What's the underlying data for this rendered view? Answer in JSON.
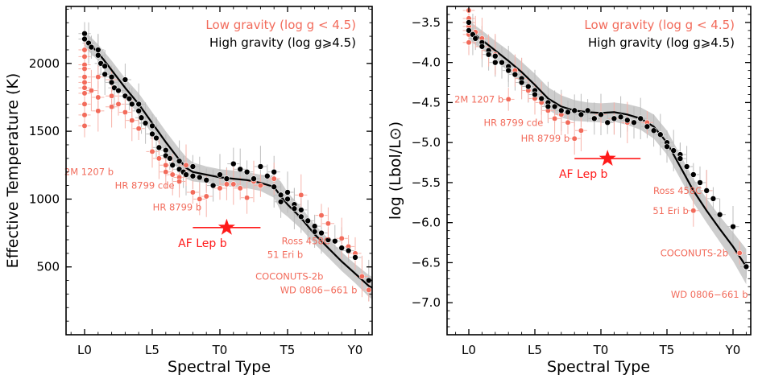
{
  "colors": {
    "low_gravity": "#f26b5b",
    "high_gravity": "#000000",
    "highlight": "#ff1a1a",
    "band": "#c8c8c8",
    "errorbar": "#bdbdbd"
  },
  "chart_data": [
    {
      "type": "scatter",
      "title": "",
      "xlabel": "Spectral Type",
      "ylabel": "Effective Temperature (K)",
      "xlim": [
        -2,
        22
      ],
      "ylim": [
        0,
        2420
      ],
      "xticks": [
        {
          "v": 0,
          "label": "L0"
        },
        {
          "v": 5,
          "label": "L5"
        },
        {
          "v": 10,
          "label": "T0"
        },
        {
          "v": 15,
          "label": "T5"
        },
        {
          "v": 20,
          "label": "Y0"
        }
      ],
      "yticks": [
        {
          "v": 500,
          "label": "500"
        },
        {
          "v": 1000,
          "label": "1000"
        },
        {
          "v": 1500,
          "label": "1500"
        },
        {
          "v": 2000,
          "label": "2000"
        }
      ],
      "legend": {
        "position": "top-right",
        "low_label": "Low gravity (log g < 4.5)",
        "high_label": "High gravity (log g⩾4.5)"
      },
      "trend": {
        "x": [
          0,
          1,
          2,
          3,
          4,
          5,
          6,
          7,
          7.5,
          8,
          9,
          10,
          11,
          12,
          13,
          14,
          14.5,
          15,
          16,
          17,
          18,
          19,
          20,
          21,
          22
        ],
        "y": [
          2180,
          2080,
          1950,
          1820,
          1700,
          1560,
          1420,
          1290,
          1230,
          1200,
          1180,
          1160,
          1150,
          1140,
          1120,
          1090,
          1020,
          960,
          860,
          740,
          640,
          540,
          450,
          360,
          300
        ],
        "band": [
          60,
          60,
          70,
          70,
          80,
          80,
          80,
          80,
          80,
          70,
          60,
          60,
          60,
          60,
          60,
          80,
          110,
          90,
          80,
          70,
          70,
          70,
          70,
          80,
          90
        ]
      },
      "high_gravity": {
        "x": [
          0,
          0,
          0.3,
          0.5,
          1,
          1,
          1.2,
          1.5,
          1.5,
          2,
          2,
          2.2,
          2.5,
          3,
          3,
          3.3,
          3.5,
          4,
          4,
          4.2,
          4.5,
          5,
          5,
          5.3,
          5.5,
          6,
          6,
          6.3,
          6.5,
          7,
          7,
          7.3,
          7.5,
          8,
          8,
          8.5,
          9,
          9.5,
          10,
          10.5,
          11,
          11.5,
          12,
          12.5,
          13,
          13.5,
          14,
          14,
          14.5,
          14.5,
          15,
          15,
          15.5,
          15.5,
          16,
          16,
          16.5,
          17,
          17,
          17.5,
          18,
          18.5,
          19,
          19.5,
          20,
          21
        ],
        "y": [
          2220,
          2180,
          2150,
          2120,
          2100,
          2060,
          2000,
          1980,
          1920,
          1900,
          1860,
          1820,
          1800,
          1880,
          1760,
          1740,
          1700,
          1700,
          1650,
          1600,
          1560,
          1540,
          1480,
          1450,
          1380,
          1360,
          1320,
          1300,
          1250,
          1280,
          1220,
          1200,
          1180,
          1240,
          1170,
          1160,
          1140,
          1100,
          1180,
          1150,
          1260,
          1220,
          1200,
          1150,
          1240,
          1170,
          1200,
          1090,
          1030,
          980,
          1050,
          1000,
          960,
          930,
          920,
          870,
          840,
          800,
          760,
          750,
          700,
          690,
          640,
          620,
          570,
          400
        ]
      },
      "low_gravity": {
        "x": [
          0,
          0,
          0,
          0,
          0,
          0,
          0,
          0,
          0,
          0,
          0,
          0.5,
          1,
          1,
          1,
          2,
          2,
          2,
          2.5,
          3,
          3.5,
          4,
          5,
          5.5,
          6,
          6,
          6.5,
          7,
          7,
          7.5,
          8,
          8.5,
          9,
          10,
          10.5,
          11,
          11.5,
          12,
          12.5,
          13,
          14,
          16,
          17.5,
          18,
          19,
          19.5,
          20,
          20.5,
          21
        ],
        "y": [
          2050,
          1990,
          1960,
          1900,
          1860,
          1820,
          1780,
          1700,
          1620,
          1540,
          2100,
          1800,
          1900,
          1750,
          1650,
          1880,
          1760,
          1680,
          1700,
          1640,
          1580,
          1520,
          1350,
          1300,
          1250,
          1200,
          1180,
          1160,
          1130,
          1250,
          1050,
          1000,
          1020,
          1080,
          1110,
          1110,
          1080,
          1010,
          1130,
          1100,
          1150,
          1030,
          880,
          820,
          710,
          650,
          600,
          430,
          330
        ]
      },
      "annotations": [
        {
          "text": "2M 1207 b",
          "x": 2.5,
          "y": 1200
        },
        {
          "text": "HR 8799 cde",
          "x": 7,
          "y": 1100
        },
        {
          "text": "HR 8799 b",
          "x": 9,
          "y": 940
        },
        {
          "text": "Ross 458C",
          "x": 18.5,
          "y": 690
        },
        {
          "text": "51 Eri b",
          "x": 16.5,
          "y": 590
        },
        {
          "text": "COCONUTS-2b",
          "x": 18,
          "y": 430
        },
        {
          "text": "WD 0806−661 b",
          "x": 20.5,
          "y": 330
        }
      ],
      "highlight": {
        "label": "AF Lep b",
        "x": 10.5,
        "y": 790,
        "xerr": 2.5
      }
    },
    {
      "type": "scatter",
      "title": "",
      "xlabel": "Spectral Type",
      "ylabel": "log (Lbol/L⊙)",
      "ylim": [
        -7.4,
        -3.3
      ],
      "xlim": [
        -2,
        22
      ],
      "xticks": [
        {
          "v": 0,
          "label": "L0"
        },
        {
          "v": 5,
          "label": "L5"
        },
        {
          "v": 10,
          "label": "T0"
        },
        {
          "v": 15,
          "label": "T5"
        },
        {
          "v": 20,
          "label": "Y0"
        }
      ],
      "yticks": [
        {
          "v": -3.5,
          "label": "−3.5"
        },
        {
          "v": -4.0,
          "label": "−4.0"
        },
        {
          "v": -4.5,
          "label": "−4.5"
        },
        {
          "v": -5.0,
          "label": "−5.0"
        },
        {
          "v": -5.5,
          "label": "−5.5"
        },
        {
          "v": -6.0,
          "label": "−6.0"
        },
        {
          "v": -6.5,
          "label": "−6.5"
        },
        {
          "v": -7.0,
          "label": "−7.0"
        }
      ],
      "legend": {
        "position": "top-right",
        "low_label": "Low gravity (log g < 4.5)",
        "high_label": "High gravity (log g⩾4.5)"
      },
      "trend": {
        "x": [
          0,
          1,
          2,
          3,
          4,
          5,
          6,
          7,
          8,
          9,
          10,
          11,
          12,
          13,
          14,
          15,
          16,
          17,
          18,
          19,
          20,
          21
        ],
        "y": [
          -3.6,
          -3.72,
          -3.85,
          -3.98,
          -4.12,
          -4.28,
          -4.45,
          -4.55,
          -4.6,
          -4.62,
          -4.63,
          -4.62,
          -4.65,
          -4.7,
          -4.8,
          -5.0,
          -5.3,
          -5.6,
          -5.85,
          -6.08,
          -6.3,
          -6.55
        ],
        "band": [
          0.12,
          0.12,
          0.12,
          0.13,
          0.13,
          0.14,
          0.14,
          0.14,
          0.13,
          0.12,
          0.12,
          0.12,
          0.13,
          0.14,
          0.15,
          0.15,
          0.15,
          0.15,
          0.15,
          0.16,
          0.18,
          0.22
        ]
      },
      "high_gravity": {
        "x": [
          0,
          0,
          0.3,
          0.5,
          1,
          1,
          1.5,
          1.5,
          2,
          2,
          2.5,
          3,
          3,
          3.5,
          4,
          4,
          4.5,
          5,
          5,
          5.5,
          6,
          6,
          6.5,
          7,
          7.5,
          8,
          8.5,
          9,
          9.5,
          10,
          10.5,
          11,
          11.5,
          12,
          12.5,
          13,
          13.5,
          14,
          14.5,
          15,
          15,
          15.5,
          16,
          16,
          16.5,
          17,
          17.5,
          18,
          18.5,
          19,
          20,
          21
        ],
        "y": [
          -3.5,
          -3.6,
          -3.65,
          -3.7,
          -3.75,
          -3.8,
          -3.85,
          -3.9,
          -3.92,
          -4.0,
          -4.0,
          -4.05,
          -4.1,
          -4.15,
          -4.2,
          -4.25,
          -4.3,
          -4.35,
          -4.4,
          -4.45,
          -4.5,
          -4.55,
          -4.55,
          -4.6,
          -4.62,
          -4.6,
          -4.65,
          -4.6,
          -4.7,
          -4.65,
          -4.75,
          -4.7,
          -4.68,
          -4.72,
          -4.75,
          -4.7,
          -4.8,
          -4.85,
          -4.9,
          -5.0,
          -5.05,
          -5.1,
          -5.15,
          -5.2,
          -5.3,
          -5.4,
          -5.5,
          -5.6,
          -5.7,
          -5.9,
          -6.05,
          -6.55
        ]
      },
      "low_gravity": {
        "x": [
          0,
          0,
          0,
          0,
          0,
          0,
          0,
          0.5,
          1,
          1,
          1.5,
          2,
          3,
          3.5,
          4,
          4.5,
          5,
          5.5,
          6,
          6.5,
          7,
          7.5,
          8,
          8.5,
          10,
          11,
          12,
          13.5,
          17,
          18,
          20.5,
          21.5
        ],
        "y": [
          -3.35,
          -3.45,
          -3.5,
          -3.55,
          -3.6,
          -3.65,
          -3.75,
          -3.62,
          -3.7,
          -3.8,
          -3.85,
          -3.9,
          -4.46,
          -4.1,
          -4.2,
          -4.35,
          -4.45,
          -4.5,
          -4.6,
          -4.7,
          -4.65,
          -4.75,
          -4.95,
          -4.85,
          -4.65,
          -4.7,
          -4.75,
          -4.75,
          -5.85,
          -5.6,
          -6.38,
          -6.9
        ]
      },
      "annotations": [
        {
          "text": "2M 1207 b",
          "x": 3,
          "y": -4.46
        },
        {
          "text": "HR 8799 cde",
          "x": 6,
          "y": -4.75
        },
        {
          "text": "HR 8799 b",
          "x": 8,
          "y": -4.95
        },
        {
          "text": "Ross 458C",
          "x": 18,
          "y": -5.6
        },
        {
          "text": "51 Eri b",
          "x": 17,
          "y": -5.85
        },
        {
          "text": "COCONUTS-2b",
          "x": 20,
          "y": -6.38
        },
        {
          "text": "WD 0806−661 b",
          "x": 21.5,
          "y": -6.9
        }
      ],
      "highlight": {
        "label": "AF Lep b",
        "x": 10.5,
        "y": -5.2,
        "xerr": 2.5
      }
    }
  ]
}
